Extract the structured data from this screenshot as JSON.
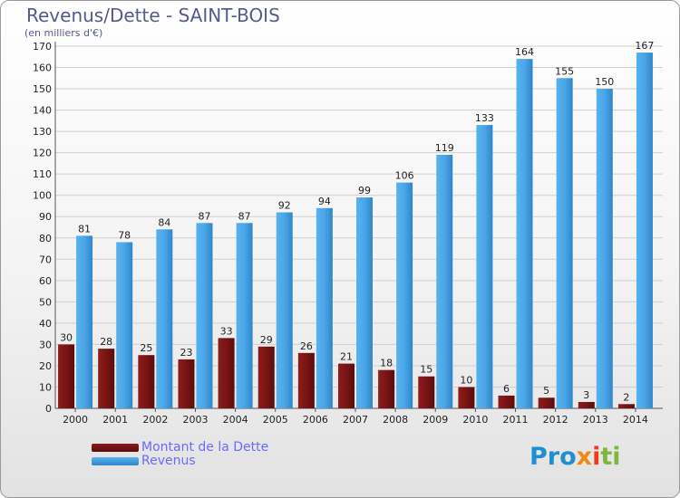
{
  "header": {
    "title": "Revenus/Dette - SAINT-BOIS",
    "subtitle": "(en milliers d'€)"
  },
  "logo": {
    "part1": "Pro",
    "part2": "x",
    "part3": "i",
    "part4": "ti"
  },
  "colors": {
    "dette": "#7a1414",
    "revenus": "#3f9ee0",
    "axis_text": "#222222",
    "grid": "#cfcfcf",
    "title": "#555a8c",
    "legend_text": "#6a6aff"
  },
  "chart_data": {
    "type": "bar",
    "title": "Revenus/Dette - SAINT-BOIS",
    "subtitle": "(en milliers d'€)",
    "xlabel": "",
    "ylabel": "",
    "categories": [
      "2000",
      "2001",
      "2002",
      "2003",
      "2004",
      "2005",
      "2006",
      "2007",
      "2008",
      "2009",
      "2010",
      "2011",
      "2012",
      "2013",
      "2014"
    ],
    "series": [
      {
        "name": "Montant de la Dette",
        "color": "#7a1414",
        "values": [
          30,
          28,
          25,
          23,
          33,
          29,
          26,
          21,
          18,
          15,
          10,
          6,
          5,
          3,
          2
        ]
      },
      {
        "name": "Revenus",
        "color": "#3f9ee0",
        "values": [
          81,
          78,
          84,
          87,
          87,
          92,
          94,
          99,
          106,
          119,
          133,
          164,
          155,
          150,
          167
        ]
      }
    ],
    "ylim": [
      0,
      170
    ],
    "yticks": [
      0,
      10,
      20,
      30,
      40,
      50,
      60,
      70,
      80,
      90,
      100,
      110,
      120,
      130,
      140,
      150,
      160,
      170
    ],
    "grid": true,
    "legend_position": "bottom-left"
  }
}
